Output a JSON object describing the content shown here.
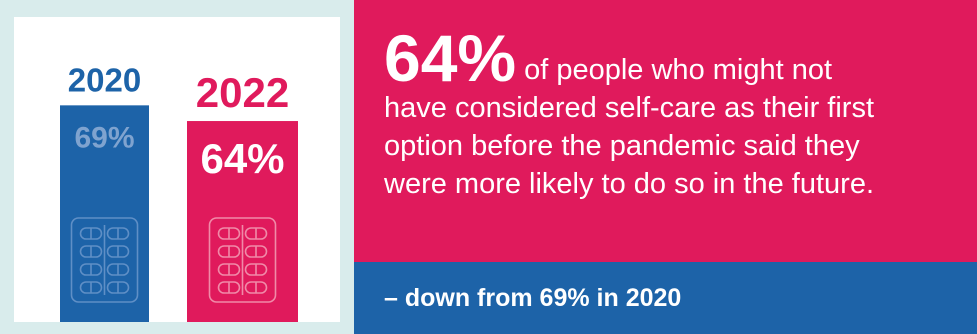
{
  "chart_data": {
    "type": "bar",
    "categories": [
      "2020",
      "2022"
    ],
    "values": [
      69,
      64
    ],
    "value_labels": [
      "69%",
      "64%"
    ],
    "ylim": [
      0,
      100
    ],
    "grid": false,
    "colors": [
      "#1d63a8",
      "#e01a5c"
    ],
    "title": "",
    "xlabel": "",
    "ylabel": ""
  },
  "callout": {
    "percentage": "64%",
    "text_line1": "of people who might not",
    "text_line2": "have considered self-care as their first",
    "text_line3": "option before the pandemic said they",
    "text_line4": "were more likely to do so in the future."
  },
  "footer": {
    "text": "– down from 69% in 2020"
  },
  "colors": {
    "panel_bg": "#d9ecec",
    "pink": "#e01a5c",
    "blue": "#1d63a8",
    "label_blue_muted": "#7fa3cf"
  },
  "icons": [
    "pill-blister-pack-icon",
    "pill-blister-pack-icon"
  ]
}
